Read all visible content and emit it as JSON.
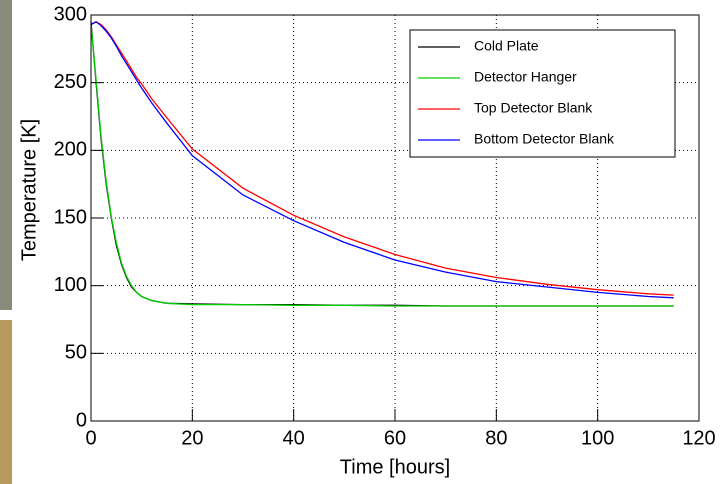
{
  "chart_data": {
    "type": "line",
    "xlabel": "Time [hours]",
    "ylabel": "Temperature [K]",
    "x": [
      0,
      1,
      2,
      3,
      4,
      5,
      6,
      7,
      8,
      9,
      10,
      12,
      15,
      20,
      30,
      40,
      50,
      60,
      70,
      80,
      90,
      100,
      110,
      115
    ],
    "series": [
      {
        "name": "Cold Plate",
        "color": "#000000",
        "values": [
          295,
          250,
          208,
          175,
          150,
          130,
          116,
          106,
          99,
          95,
          92,
          89,
          87,
          86.5,
          86,
          86,
          85.5,
          85.5,
          85,
          85,
          85,
          85,
          85,
          85
        ]
      },
      {
        "name": "Detector Hanger",
        "color": "#00cc00",
        "values": [
          293,
          252,
          210,
          177,
          151,
          132,
          117,
          107,
          100,
          95,
          92,
          89,
          87,
          86,
          86,
          85.5,
          85.5,
          85,
          85,
          85,
          85,
          85,
          85,
          85
        ]
      },
      {
        "name": "Top Detector Blank",
        "color": "#ff0000",
        "values": [
          293,
          295,
          293,
          289,
          284,
          278,
          272,
          266,
          260,
          254,
          249,
          238,
          224,
          201,
          172,
          152,
          136,
          123,
          113,
          106,
          101,
          97,
          94,
          93
        ]
      },
      {
        "name": "Bottom Detector Blank",
        "color": "#0000ff",
        "values": [
          293,
          295,
          292,
          288,
          283,
          277,
          270,
          264,
          258,
          252,
          246,
          235,
          220,
          196,
          167,
          148,
          132,
          119,
          110,
          103,
          99,
          95,
          92,
          91
        ]
      }
    ],
    "xlim": [
      0,
      120
    ],
    "ylim": [
      0,
      300
    ],
    "xticks": [
      0,
      20,
      40,
      60,
      80,
      100,
      120
    ],
    "yticks": [
      0,
      50,
      100,
      150,
      200,
      250,
      300
    ],
    "grid": true,
    "legend": "upper-right"
  }
}
